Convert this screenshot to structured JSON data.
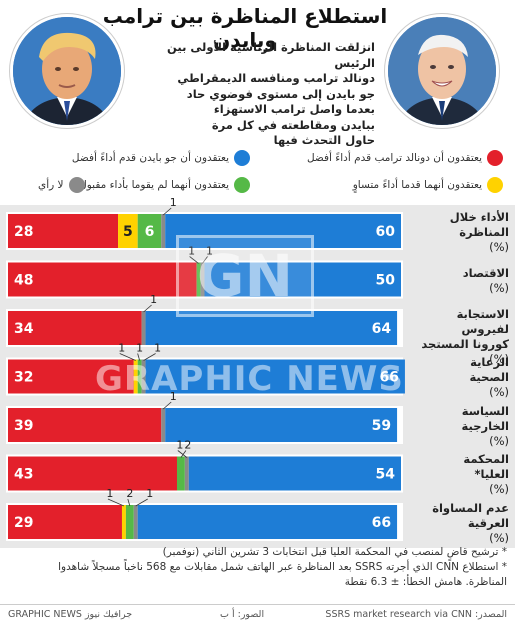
{
  "title": "استطلاع المناظرة بين ترامب وبايدن",
  "intro_lines": [
    "انزلقت المناظرة الرئاسية الأولى بين الرئيس",
    "دونالد ترامب ومنافسه  الديمقراطي",
    "جو بايدن إلى مستوى فوضوي حاد",
    "بعدما واصل ترامب الاستهزاء",
    "ببايدن ومقاطعته في كل مرة",
    "حاول التحدث فيها"
  ],
  "legend": [
    {
      "label": "يعتقدون أن دونالد ترامب قدم أداءً أفضل",
      "color": "#e3202b"
    },
    {
      "label": "يعتقدون أن جو بايدن قدم أداءً أفضل",
      "color": "#1e7dd6"
    },
    {
      "label": "يعتقدون أنهما قدما أداءً متساوٍ",
      "color": "#ffd200"
    },
    {
      "label": "يعتقدون أنهما لم يقوما بأداء مقبول",
      "color": "#55b947"
    },
    {
      "label": "لا رأي",
      "color": "#8a8a8a"
    }
  ],
  "colors": {
    "trump": "#e3202b",
    "biden": "#1e7dd6",
    "equal": "#ffd200",
    "neither": "#55b947",
    "no_opinion": "#8a8a8a"
  },
  "chart_data": {
    "type": "bar",
    "orientation": "horizontal",
    "stacked": true,
    "unit": "%",
    "categories": [
      "الأداء خلال المناظرة (%)",
      "الاقتصاد (%)",
      "الاستجابة لفيروس كورونا المستجد (%)",
      "الرعاية الصحية (%)",
      "السياسة الخارجية (%)",
      "المحكمة العليا* (%)",
      "عدم المساواة العرقية (%)"
    ],
    "category_lines": [
      [
        "الأداء خلال",
        "المناظرة",
        "(%)"
      ],
      [
        "الاقتصاد",
        "(%)"
      ],
      [
        "الاستجابة لفيروس",
        "كورونا المستجد",
        "(%)"
      ],
      [
        "الرعاية",
        "الصحية",
        "(%)"
      ],
      [
        "السياسة",
        "الخارجية",
        "(%)"
      ],
      [
        "المحكمة",
        "العليا*",
        "(%)"
      ],
      [
        "عدم المساواة",
        "العرقية",
        "(%)"
      ]
    ],
    "series": [
      {
        "key": "trump",
        "name": "يعتقدون أن دونالد ترامب قدم أداءً أفضل",
        "values": [
          28,
          48,
          34,
          32,
          39,
          43,
          29
        ]
      },
      {
        "key": "equal",
        "name": "يعتقدون أنهما قدما أداءً متساوٍ",
        "values": [
          5,
          0,
          0,
          1,
          0,
          0,
          1
        ]
      },
      {
        "key": "neither",
        "name": "يعتقدون أنهما لم يقوما بأداء مقبول",
        "values": [
          6,
          1,
          0,
          1,
          0,
          2,
          2
        ]
      },
      {
        "key": "no_opinion",
        "name": "لا رأي",
        "values": [
          1,
          1,
          1,
          1,
          1,
          1,
          1
        ]
      },
      {
        "key": "biden",
        "name": "يعتقدون أن جو بايدن قدم أداءً أفضل",
        "values": [
          60,
          50,
          64,
          66,
          59,
          54,
          66
        ]
      }
    ],
    "inside_labels": [
      {
        "trump": "28",
        "equal": "5",
        "neither": "6",
        "biden": "60"
      },
      {
        "trump": "48",
        "biden": "50"
      },
      {
        "trump": "34",
        "biden": "64"
      },
      {
        "trump": "32",
        "biden": "66"
      },
      {
        "trump": "39",
        "biden": "59"
      },
      {
        "trump": "43",
        "biden": "54"
      },
      {
        "trump": "29",
        "biden": "66"
      }
    ],
    "callouts": [
      [
        {
          "series": "no_opinion",
          "text": "1"
        }
      ],
      [
        {
          "series": "neither",
          "text": "1"
        },
        {
          "series": "no_opinion",
          "text": "1"
        }
      ],
      [
        {
          "series": "no_opinion",
          "text": "1"
        }
      ],
      [
        {
          "series": "equal",
          "text": "1"
        },
        {
          "series": "neither",
          "text": "1"
        },
        {
          "series": "no_opinion",
          "text": "1"
        }
      ],
      [
        {
          "series": "no_opinion",
          "text": "1"
        }
      ],
      [
        {
          "series": "no_opinion",
          "text": "1"
        },
        {
          "series": "neither",
          "text": "2"
        }
      ],
      [
        {
          "series": "equal",
          "text": "1"
        },
        {
          "series": "neither",
          "text": "2"
        },
        {
          "series": "no_opinion",
          "text": "1"
        }
      ]
    ],
    "xlim": [
      0,
      100
    ]
  },
  "footnotes": [
    "* ترشيح قاضٍ لمنصب في المحكمة العليا قبل انتخابات 3 تشرين الثاني (نوفمبر)",
    "* استطلاع CNN الذي أجرته SSRS بعد المناظرة عبر الهاتف شمل مقابلات مع 568 ناخباً مسجلاً شاهدوا",
    "المناظرة. هامش الخطأ: ± 6.3 نقطة"
  ],
  "footer": {
    "source": "المصدر: SSRS market research via CNN",
    "photos": "الصور: أ ب",
    "brand": "GRAPHIC NEWS جرافيك نيوز"
  },
  "watermark": {
    "logo": "GN",
    "text": "GRAPHIC NEWS"
  }
}
